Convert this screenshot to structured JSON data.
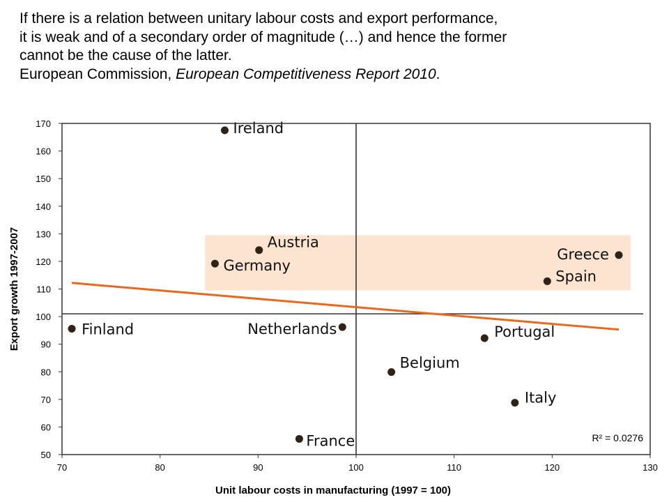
{
  "quote": {
    "line1": "If there is a relation between unitary labour costs and export performance,",
    "line2": "it is weak and of a secondary order of magnitude (…) and hence the former",
    "line3": "cannot be the cause of the latter.",
    "source_prefix": "European Commission, ",
    "source_title": "European Competitiveness Report 2010",
    "source_suffix": "."
  },
  "chart_data": {
    "type": "scatter",
    "xlabel": "Unit labour costs in manufacturing (1997 = 100)",
    "ylabel": "Export growth 1997-2007",
    "xlim": [
      70,
      130
    ],
    "ylim": [
      50,
      170
    ],
    "x_ticks": [
      70,
      80,
      90,
      100,
      110,
      120,
      130
    ],
    "y_ticks": [
      50,
      60,
      70,
      80,
      90,
      100,
      110,
      120,
      130,
      140,
      150,
      160,
      170
    ],
    "points": [
      {
        "label": "Ireland",
        "x": 86.6,
        "y": 167.5
      },
      {
        "label": "Austria",
        "x": 90.1,
        "y": 124.1
      },
      {
        "label": "Germany",
        "x": 85.6,
        "y": 119.2
      },
      {
        "label": "Greece",
        "x": 126.8,
        "y": 122.3
      },
      {
        "label": "Spain",
        "x": 119.5,
        "y": 112.8
      },
      {
        "label": "Finland",
        "x": 71.0,
        "y": 95.6
      },
      {
        "label": "Netherlands",
        "x": 98.6,
        "y": 96.2
      },
      {
        "label": "Portugal",
        "x": 113.1,
        "y": 92.2
      },
      {
        "label": "Belgium",
        "x": 103.6,
        "y": 79.9
      },
      {
        "label": "Italy",
        "x": 116.2,
        "y": 68.8
      },
      {
        "label": "France",
        "x": 94.2,
        "y": 55.7
      }
    ],
    "reference_lines": {
      "x": 100,
      "y": 101
    },
    "trendline": {
      "x": [
        71.0,
        126.8
      ],
      "y": [
        112.2,
        95.3
      ],
      "color": "#E8681E"
    },
    "r_squared": "R² = 0.0276",
    "highlight_band": {
      "x": [
        84.6,
        128.0
      ],
      "y": [
        109.5,
        129.5
      ],
      "color": "#FCE4D0"
    },
    "point_color": "#2E2316",
    "grid": false
  }
}
